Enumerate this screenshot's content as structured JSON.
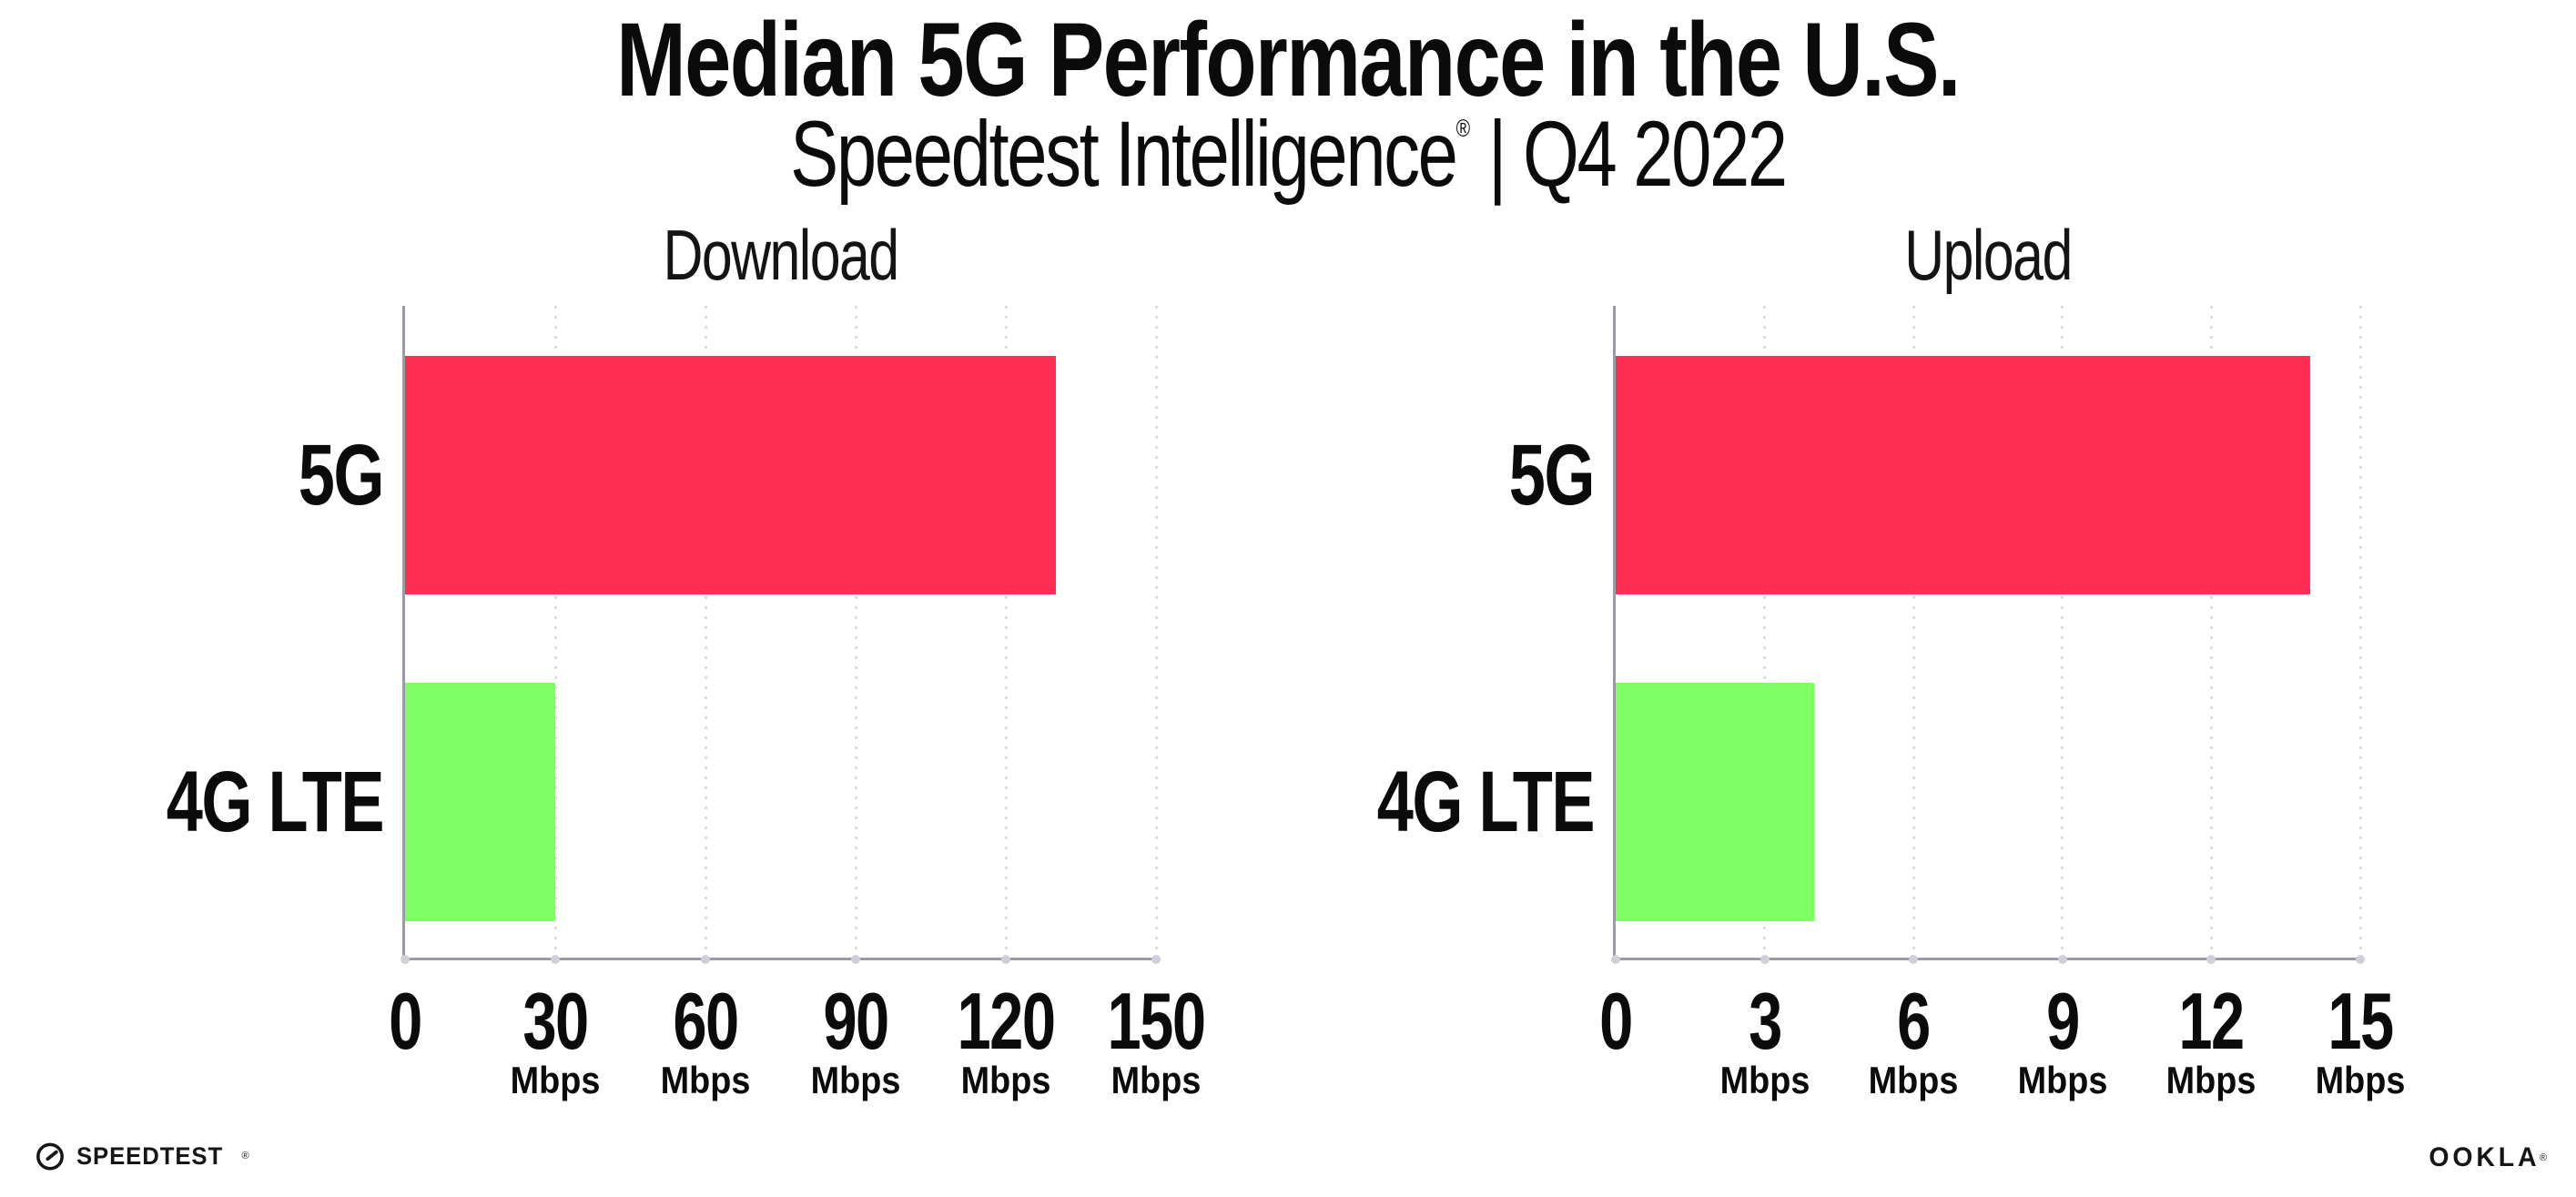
{
  "header": {
    "title": "Median 5G Performance in the U.S.",
    "subtitle_brand": "Speedtest Intelligence",
    "reg_mark": "®",
    "subtitle_rest": " | Q4 2022"
  },
  "colors": {
    "bar_5g": "#ff2e55",
    "bar_4g_lte": "#7eff64",
    "axis": "#9b9ba3",
    "gridline": "#dcdce6",
    "text": "#0b0b0b"
  },
  "chart_data": [
    {
      "type": "bar",
      "orientation": "horizontal",
      "title": "Download",
      "categories": [
        "5G",
        "4G LTE"
      ],
      "values": [
        130,
        30
      ],
      "unit": "Mbps",
      "xticks": [
        0,
        30,
        60,
        90,
        120,
        150
      ],
      "xlim": [
        0,
        150
      ],
      "grid": "dotted-vertical",
      "legend": "none",
      "bar_colors": [
        "#ff2e55",
        "#7eff64"
      ]
    },
    {
      "type": "bar",
      "orientation": "horizontal",
      "title": "Upload",
      "categories": [
        "5G",
        "4G LTE"
      ],
      "values": [
        14,
        4
      ],
      "unit": "Mbps",
      "xticks": [
        0,
        3,
        6,
        9,
        12,
        15
      ],
      "xlim": [
        0,
        15
      ],
      "grid": "dotted-vertical",
      "legend": "none",
      "bar_colors": [
        "#ff2e55",
        "#7eff64"
      ]
    }
  ],
  "footer": {
    "speedtest": "SPEEDTEST",
    "speedtest_mark": "®",
    "ookla": "OOKLA",
    "ookla_mark": "®"
  }
}
